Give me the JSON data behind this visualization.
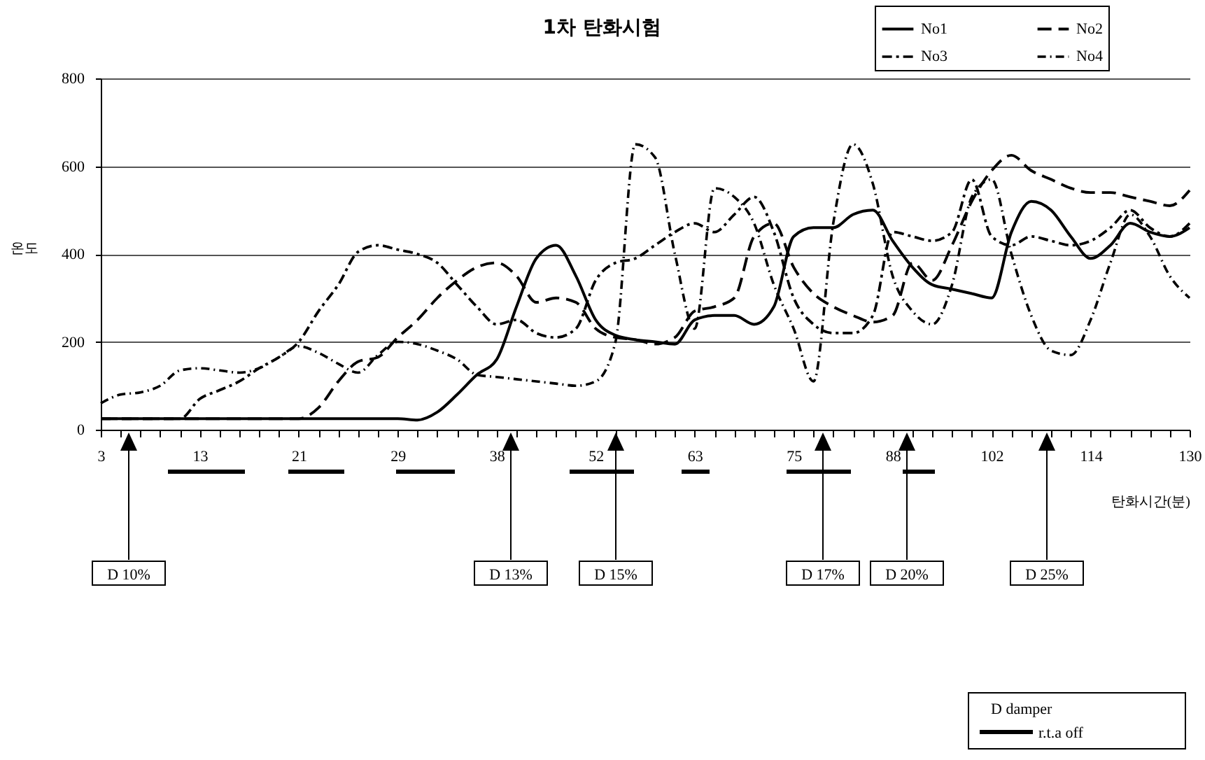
{
  "chart_data": {
    "type": "line",
    "title": "1차 탄화시험",
    "xlabel": "탄화시간(분)",
    "ylabel": "온도",
    "categories": [
      "3",
      null,
      null,
      null,
      null,
      "13",
      null,
      null,
      null,
      null,
      "21",
      null,
      null,
      null,
      null,
      "29",
      null,
      null,
      null,
      null,
      "38",
      null,
      null,
      null,
      null,
      "52",
      null,
      null,
      null,
      null,
      "63",
      null,
      null,
      null,
      null,
      "75",
      null,
      null,
      null,
      null,
      "88",
      null,
      null,
      null,
      null,
      "102",
      null,
      null,
      null,
      null,
      "114",
      null,
      null,
      null,
      null,
      "130"
    ],
    "ylim": [
      0,
      800
    ],
    "yticks": [
      0,
      200,
      400,
      600,
      800
    ],
    "grid": "y",
    "legend": "top right",
    "series": [
      {
        "name": "No1",
        "color": "#000000",
        "line_style": "solid",
        "values": [
          25,
          25,
          25,
          25,
          25,
          25,
          25,
          25,
          25,
          25,
          25,
          25,
          25,
          25,
          25,
          25,
          22,
          40,
          80,
          125,
          160,
          280,
          390,
          420,
          350,
          250,
          215,
          205,
          200,
          195,
          250,
          260,
          260,
          240,
          280,
          440,
          460,
          460,
          490,
          500,
          430,
          370,
          330,
          320,
          310,
          300,
          450,
          520,
          500,
          440,
          390,
          420,
          470,
          450,
          440,
          460
        ]
      },
      {
        "name": "No2",
        "color": "#000000",
        "line_style": "dashed",
        "values": [
          25,
          25,
          25,
          25,
          25,
          25,
          25,
          25,
          25,
          25,
          25,
          50,
          110,
          155,
          165,
          210,
          250,
          300,
          340,
          370,
          380,
          350,
          290,
          300,
          290,
          230,
          210,
          205,
          195,
          210,
          270,
          280,
          300,
          440,
          470,
          370,
          310,
          280,
          260,
          245,
          260,
          380,
          340,
          420,
          520,
          590,
          625,
          590,
          570,
          550,
          540,
          540,
          530,
          520,
          510,
          545
        ]
      },
      {
        "name": "No3",
        "color": "#000000",
        "line_style": "dashed",
        "values": [
          25,
          25,
          25,
          25,
          25,
          70,
          90,
          110,
          140,
          165,
          200,
          270,
          330,
          405,
          420,
          410,
          400,
          380,
          330,
          280,
          240,
          250,
          220,
          210,
          230,
          340,
          380,
          390,
          420,
          450,
          470,
          450,
          490,
          530,
          450,
          300,
          240,
          220,
          220,
          260,
          450,
          440,
          430,
          450,
          570,
          440,
          420,
          440,
          430,
          420,
          430,
          460,
          500,
          460,
          440,
          470
        ]
      },
      {
        "name": "No4",
        "color": "#000000",
        "line_style": "dashed",
        "values": [
          60,
          80,
          85,
          100,
          135,
          140,
          135,
          130,
          140,
          165,
          190,
          175,
          150,
          130,
          170,
          200,
          195,
          180,
          160,
          125,
          120,
          115,
          110,
          105,
          100,
          110,
          200,
          650,
          620,
          400,
          230,
          550,
          530,
          470,
          330,
          230,
          110,
          470,
          650,
          560,
          350,
          270,
          240,
          330,
          530,
          570,
          400,
          260,
          180,
          170,
          250,
          380,
          490,
          440,
          350,
          300
        ]
      }
    ],
    "annotations": [
      "D 10%",
      "D 13%",
      "D 15%",
      "D 17%",
      "D 20%",
      "D 25%",
      "D damper",
      "r.t.a off"
    ]
  }
}
